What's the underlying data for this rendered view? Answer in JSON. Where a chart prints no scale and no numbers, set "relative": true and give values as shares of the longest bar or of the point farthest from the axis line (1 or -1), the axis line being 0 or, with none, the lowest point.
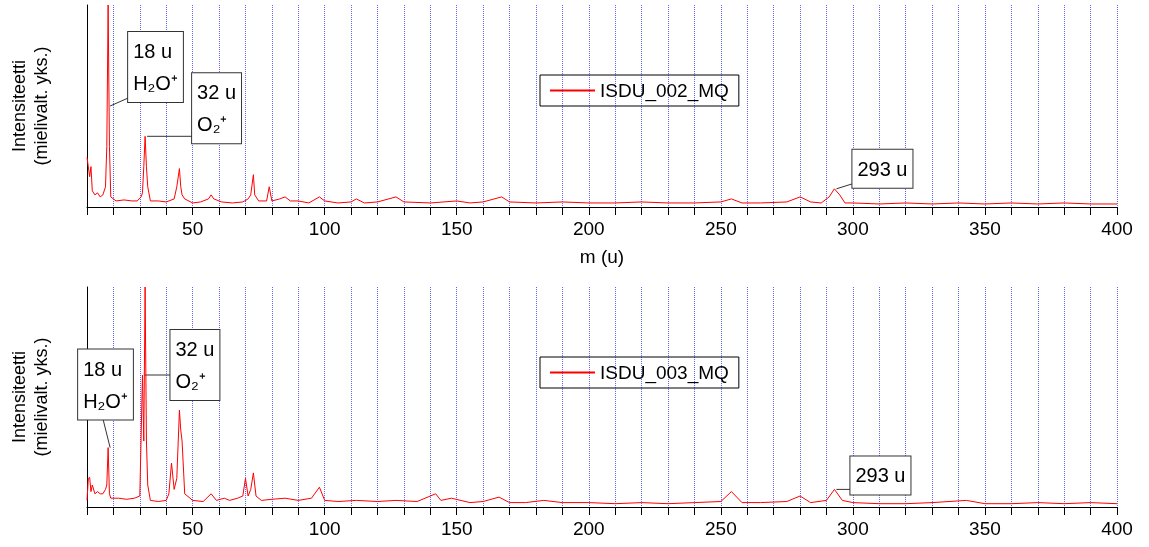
{
  "chart_data": [
    {
      "type": "line",
      "xlabel": "m (u)",
      "ylabel": "Intensiteetti\n(mielivalt. yks.)",
      "relative": true,
      "xlim": [
        10,
        400
      ],
      "grid": "x",
      "legend": "top",
      "marker": "none",
      "xticks": [
        {
          "value": 10,
          "label": null
        },
        {
          "value": 20,
          "label": null
        },
        {
          "value": 30,
          "label": null
        },
        {
          "value": 40,
          "label": null
        },
        50,
        {
          "value": 60,
          "label": null
        },
        {
          "value": 70,
          "label": null
        },
        {
          "value": 80,
          "label": null
        },
        {
          "value": 90,
          "label": null
        },
        100,
        {
          "value": 110,
          "label": null
        },
        {
          "value": 120,
          "label": null
        },
        {
          "value": 130,
          "label": null
        },
        {
          "value": 140,
          "label": null
        },
        150,
        {
          "value": 160,
          "label": null
        },
        {
          "value": 170,
          "label": null
        },
        {
          "value": 180,
          "label": null
        },
        {
          "value": 190,
          "label": null
        },
        200,
        {
          "value": 210,
          "label": null
        },
        {
          "value": 220,
          "label": null
        },
        {
          "value": 230,
          "label": null
        },
        {
          "value": 240,
          "label": null
        },
        250,
        {
          "value": 260,
          "label": null
        },
        {
          "value": 270,
          "label": null
        },
        {
          "value": 280,
          "label": null
        },
        {
          "value": 290,
          "label": null
        },
        300,
        {
          "value": 310,
          "label": null
        },
        {
          "value": 320,
          "label": null
        },
        {
          "value": 330,
          "label": null
        },
        {
          "value": 340,
          "label": null
        },
        350,
        {
          "value": 360,
          "label": null
        },
        {
          "value": 370,
          "label": null
        },
        {
          "value": 380,
          "label": null
        },
        {
          "value": 390,
          "label": null
        },
        400
      ],
      "annotations": [
        {
          "text": "18 u\nH₂O⁺",
          "x": 18,
          "y": 0.5
        },
        {
          "text": "32 u\nO₂⁺",
          "x": 32,
          "y": 0.35
        },
        {
          "text": "293 u",
          "x": 293,
          "y": 0.09
        }
      ],
      "series": [
        {
          "name": "ISDU_002_MQ",
          "color": "#ff0000",
          "x": [
            10,
            10.5,
            11,
            11.5,
            12,
            13,
            14,
            15,
            16,
            17,
            17.5,
            18,
            18.5,
            19,
            21,
            24,
            27,
            29,
            30.5,
            31,
            31.5,
            32,
            32.5,
            33,
            34,
            37,
            40,
            43,
            44,
            45,
            45.5,
            46,
            47,
            50,
            53,
            56,
            57,
            58,
            61,
            65,
            69,
            71,
            72,
            73,
            73.5,
            75,
            78,
            79,
            80,
            83,
            85,
            87,
            90,
            94,
            98,
            100,
            105,
            110,
            112,
            115,
            120,
            127,
            130,
            140,
            150,
            155,
            160,
            167,
            170,
            180,
            190,
            200,
            210,
            220,
            230,
            240,
            250,
            254,
            258,
            265,
            275,
            280,
            284,
            288,
            291,
            293,
            295,
            297,
            300,
            310,
            320,
            330,
            340,
            350,
            360,
            370,
            380,
            390,
            400
          ],
          "values": [
            0.245,
            0.2,
            0.15,
            0.2,
            0.08,
            0.06,
            0.07,
            0.05,
            0.06,
            0.1,
            0.3,
            1,
            0.3,
            0.05,
            0.03,
            0.035,
            0.03,
            0.03,
            0.05,
            0.07,
            0.2,
            0.35,
            0.2,
            0.1,
            0.03,
            0.03,
            0.025,
            0.04,
            0.1,
            0.19,
            0.1,
            0.06,
            0.04,
            0.02,
            0.025,
            0.04,
            0.06,
            0.04,
            0.025,
            0.02,
            0.025,
            0.04,
            0.06,
            0.16,
            0.06,
            0.03,
            0.03,
            0.1,
            0.03,
            0.04,
            0.05,
            0.03,
            0.03,
            0.02,
            0.05,
            0.03,
            0.02,
            0.025,
            0.04,
            0.02,
            0.025,
            0.05,
            0.025,
            0.02,
            0.03,
            0.02,
            0.025,
            0.05,
            0.025,
            0.02,
            0.025,
            0.02,
            0.02,
            0.025,
            0.02,
            0.02,
            0.025,
            0.04,
            0.02,
            0.02,
            0.025,
            0.05,
            0.025,
            0.02,
            0.05,
            0.09,
            0.06,
            0.02,
            0.02,
            0.015,
            0.02,
            0.015,
            0.02,
            0.015,
            0.02,
            0.015,
            0.02,
            0.015,
            0.015
          ]
        }
      ]
    },
    {
      "type": "line",
      "ylabel": "Intensiteetti\n(mielivalt. yks.)",
      "relative": true,
      "xlim": [
        10,
        400
      ],
      "grid": "x",
      "legend": "top",
      "marker": "none",
      "xticks": [
        {
          "value": 10,
          "label": null
        },
        {
          "value": 20,
          "label": null
        },
        {
          "value": 30,
          "label": null
        },
        {
          "value": 40,
          "label": null
        },
        50,
        {
          "value": 60,
          "label": null
        },
        {
          "value": 70,
          "label": null
        },
        {
          "value": 80,
          "label": null
        },
        {
          "value": 90,
          "label": null
        },
        100,
        {
          "value": 110,
          "label": null
        },
        {
          "value": 120,
          "label": null
        },
        {
          "value": 130,
          "label": null
        },
        {
          "value": 140,
          "label": null
        },
        150,
        {
          "value": 160,
          "label": null
        },
        {
          "value": 170,
          "label": null
        },
        {
          "value": 180,
          "label": null
        },
        {
          "value": 190,
          "label": null
        },
        200,
        {
          "value": 210,
          "label": null
        },
        {
          "value": 220,
          "label": null
        },
        {
          "value": 230,
          "label": null
        },
        {
          "value": 240,
          "label": null
        },
        250,
        {
          "value": 260,
          "label": null
        },
        {
          "value": 270,
          "label": null
        },
        {
          "value": 280,
          "label": null
        },
        {
          "value": 290,
          "label": null
        },
        300,
        {
          "value": 310,
          "label": null
        },
        {
          "value": 320,
          "label": null
        },
        {
          "value": 330,
          "label": null
        },
        {
          "value": 340,
          "label": null
        },
        350,
        {
          "value": 360,
          "label": null
        },
        {
          "value": 370,
          "label": null
        },
        {
          "value": 380,
          "label": null
        },
        {
          "value": 390,
          "label": null
        },
        400
      ],
      "annotations": [
        {
          "text": "18 u\nH₂O⁺",
          "x": 18,
          "y": 0.27
        },
        {
          "text": "32 u\nO₂⁺",
          "x": 31,
          "y": 0.6
        },
        {
          "text": "293 u",
          "x": 293,
          "y": 0.08
        }
      ],
      "series": [
        {
          "name": "ISDU_003_MQ",
          "color": "#ff0000",
          "x": [
            10,
            10.5,
            11,
            11.5,
            12,
            13,
            14,
            15,
            16,
            17,
            17.5,
            18,
            18.5,
            19,
            22,
            25,
            28,
            30,
            31,
            31.5,
            32,
            32.5,
            33,
            34,
            37,
            40,
            41,
            42,
            43,
            44,
            45,
            45.5,
            46,
            47,
            50,
            54,
            57,
            59,
            62,
            64,
            67,
            69,
            70,
            71,
            72,
            73,
            74,
            76,
            80,
            85,
            90,
            95,
            98,
            100,
            105,
            112,
            120,
            127,
            135,
            142,
            144,
            148,
            155,
            160,
            166,
            170,
            176,
            183,
            190,
            200,
            210,
            220,
            230,
            240,
            250,
            254,
            258,
            265,
            275,
            280,
            284,
            290,
            293,
            296,
            300,
            310,
            320,
            330,
            343,
            350,
            360,
            370,
            380,
            390,
            400
          ],
          "values": [
            0.03,
            0.13,
            0.135,
            0.07,
            0.1,
            0.06,
            0.07,
            0.06,
            0.06,
            0.08,
            0.1,
            0.27,
            0.06,
            0.04,
            0.04,
            0.035,
            0.04,
            0.05,
            0.6,
            0.3,
            1,
            0.3,
            0.1,
            0.03,
            0.025,
            0.03,
            0.06,
            0.2,
            0.08,
            0.13,
            0.44,
            0.35,
            0.3,
            0.06,
            0.03,
            0.025,
            0.06,
            0.03,
            0.04,
            0.03,
            0.04,
            0.05,
            0.13,
            0.05,
            0.08,
            0.155,
            0.05,
            0.03,
            0.035,
            0.04,
            0.03,
            0.04,
            0.09,
            0.03,
            0.025,
            0.03,
            0.025,
            0.03,
            0.025,
            0.06,
            0.03,
            0.04,
            0.02,
            0.025,
            0.045,
            0.02,
            0.02,
            0.03,
            0.02,
            0.02,
            0.015,
            0.02,
            0.015,
            0.02,
            0.025,
            0.07,
            0.02,
            0.02,
            0.025,
            0.05,
            0.02,
            0.03,
            0.08,
            0.03,
            0.02,
            0.015,
            0.015,
            0.02,
            0.03,
            0.015,
            0.015,
            0.02,
            0.015,
            0.02,
            0.015
          ]
        }
      ]
    }
  ]
}
